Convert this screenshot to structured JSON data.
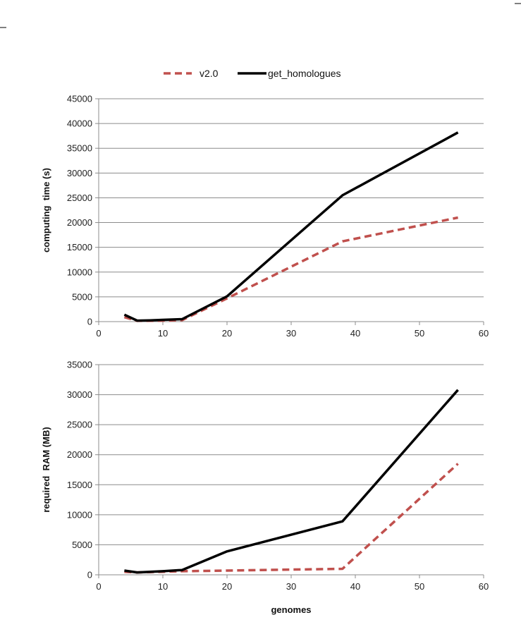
{
  "legend": {
    "placement": "top-center"
  },
  "chart_data": [
    {
      "type": "line",
      "ylabel": "computing  time (s)",
      "xlabel": "",
      "xlim": [
        0,
        60
      ],
      "ylim": [
        0,
        45000
      ],
      "x_ticks": [
        0,
        10,
        20,
        30,
        40,
        50,
        60
      ],
      "y_ticks": [
        0,
        5000,
        10000,
        15000,
        20000,
        25000,
        30000,
        35000,
        40000,
        45000
      ],
      "grid": "horizontal",
      "series": [
        {
          "name": "v2.0",
          "color": "#c0504d",
          "dash": "dashed",
          "x": [
            4,
            6,
            8,
            10,
            13,
            20,
            38,
            56
          ],
          "y": [
            900,
            150,
            150,
            200,
            300,
            4700,
            16200,
            21000
          ]
        },
        {
          "name": "get_homologues",
          "color": "#000000",
          "dash": "solid",
          "x": [
            4,
            6,
            8,
            10,
            13,
            20,
            38,
            56
          ],
          "y": [
            1400,
            200,
            250,
            350,
            500,
            5100,
            25500,
            38200
          ]
        }
      ]
    },
    {
      "type": "line",
      "ylabel": "required  RAM (MB)",
      "xlabel": "genomes",
      "xlim": [
        0,
        60
      ],
      "ylim": [
        0,
        35000
      ],
      "x_ticks": [
        0,
        10,
        20,
        30,
        40,
        50,
        60
      ],
      "y_ticks": [
        0,
        5000,
        10000,
        15000,
        20000,
        25000,
        30000,
        35000
      ],
      "grid": "horizontal",
      "series": [
        {
          "name": "v2.0",
          "color": "#c0504d",
          "dash": "dashed",
          "x": [
            4,
            6,
            8,
            10,
            13,
            20,
            38,
            56
          ],
          "y": [
            500,
            400,
            450,
            500,
            600,
            700,
            1000,
            18500
          ]
        },
        {
          "name": "get_homologues",
          "color": "#000000",
          "dash": "solid",
          "x": [
            4,
            6,
            8,
            10,
            13,
            20,
            38,
            56
          ],
          "y": [
            700,
            400,
            500,
            600,
            800,
            3900,
            8900,
            30800
          ]
        }
      ]
    }
  ]
}
